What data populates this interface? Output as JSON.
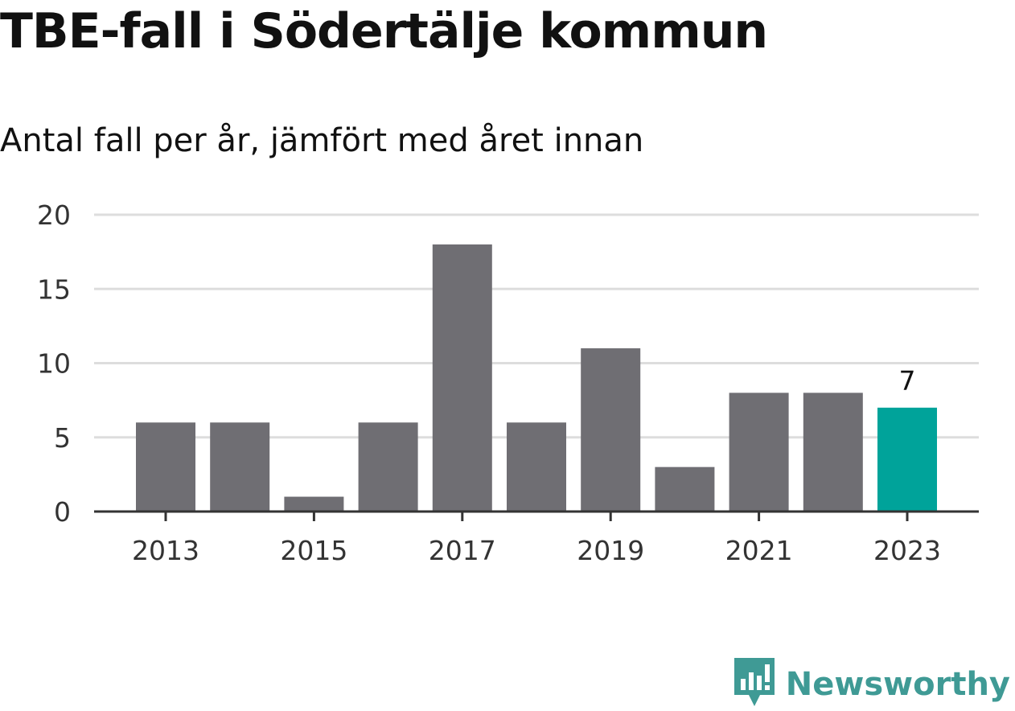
{
  "header": {
    "title": "TBE-fall i Södertälje kommun",
    "subtitle": "Antal fall per år, jämfört med året innan"
  },
  "brand": {
    "name": "Newsworthy",
    "icon": "newsworthy-logo-icon",
    "color": "#3f9a95"
  },
  "colors": {
    "bar": "#6f6e73",
    "highlight": "#00a39a",
    "grid": "#dddddd",
    "axis": "#333333"
  },
  "chart_data": {
    "type": "bar",
    "title": "TBE-fall i Södertälje kommun",
    "subtitle": "Antal fall per år, jämfört med året innan",
    "categories": [
      "2013",
      "2014",
      "2015",
      "2016",
      "2017",
      "2018",
      "2019",
      "2020",
      "2021",
      "2022",
      "2023"
    ],
    "values": [
      6,
      6,
      1,
      6,
      18,
      6,
      11,
      3,
      8,
      8,
      7
    ],
    "highlight_index": 10,
    "data_labels": [
      {
        "category": "2023",
        "text": "7"
      }
    ],
    "x_tick_labels": [
      "2013",
      "2015",
      "2017",
      "2019",
      "2021",
      "2023"
    ],
    "y_ticks": [
      "0",
      "5",
      "10",
      "15",
      "20"
    ],
    "ylim": [
      0,
      20
    ],
    "grid": true,
    "legend": "none",
    "xlabel": "",
    "ylabel": ""
  }
}
